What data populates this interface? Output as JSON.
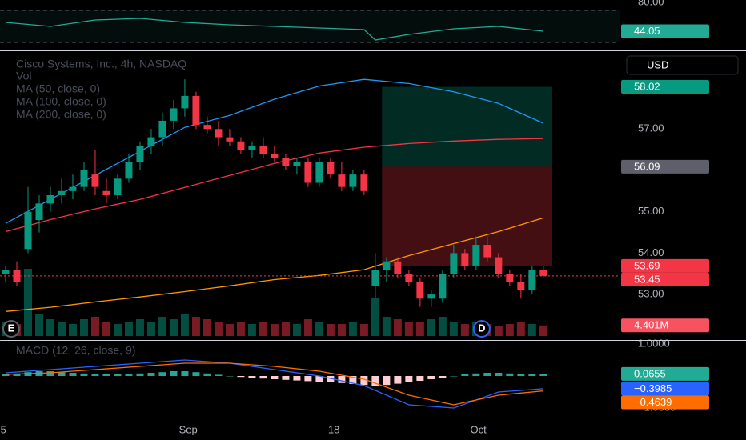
{
  "chart_data": {
    "type": "candlestick",
    "title": "Cisco Systems, Inc., 4h, NASDAQ",
    "volume_label": "Vol",
    "currency": "USD",
    "up_color": "#089981",
    "down_color": "#f23645",
    "xlim": [
      -0.5,
      54.8
    ],
    "xticks": [
      {
        "value": -0.2,
        "label": "5"
      },
      {
        "value": 16.3,
        "label": "Sep"
      },
      {
        "value": 29.3,
        "label": "18"
      },
      {
        "value": 42.2,
        "label": "Oct"
      }
    ],
    "ylim": [
      51.9,
      58.9
    ],
    "yticks": [
      {
        "value": 57,
        "label": "57.00"
      },
      {
        "value": 55,
        "label": "55.00"
      },
      {
        "value": 54,
        "label": "54.00"
      },
      {
        "value": 53,
        "label": "53.00"
      }
    ],
    "ohlc": [
      [
        53.5,
        53.7,
        53.3,
        53.6
      ],
      [
        53.6,
        53.8,
        53.2,
        53.3
      ],
      [
        54.1,
        55.6,
        54.0,
        55.0
      ],
      [
        54.8,
        55.4,
        54.5,
        55.2
      ],
      [
        55.2,
        55.6,
        55.0,
        55.4
      ],
      [
        55.4,
        55.8,
        55.2,
        55.5
      ],
      [
        55.5,
        55.9,
        55.3,
        55.6
      ],
      [
        55.6,
        56.2,
        55.5,
        56.0
      ],
      [
        55.9,
        56.5,
        55.4,
        55.6
      ],
      [
        55.5,
        55.8,
        55.2,
        55.4
      ],
      [
        55.4,
        55.9,
        55.3,
        55.8
      ],
      [
        55.8,
        56.4,
        55.7,
        56.2
      ],
      [
        56.2,
        56.7,
        56.0,
        56.6
      ],
      [
        56.6,
        57.0,
        56.4,
        56.8
      ],
      [
        56.8,
        57.4,
        56.6,
        57.2
      ],
      [
        57.2,
        57.7,
        57.0,
        57.5
      ],
      [
        57.5,
        58.2,
        57.3,
        57.8
      ],
      [
        57.8,
        57.9,
        57.0,
        57.1
      ],
      [
        57.1,
        57.3,
        56.9,
        57.0
      ],
      [
        57.0,
        57.2,
        56.6,
        56.8
      ],
      [
        56.8,
        57.0,
        56.6,
        56.7
      ],
      [
        56.7,
        56.8,
        56.4,
        56.5
      ],
      [
        56.5,
        56.7,
        56.3,
        56.6
      ],
      [
        56.6,
        56.8,
        56.3,
        56.4
      ],
      [
        56.4,
        56.6,
        56.2,
        56.3
      ],
      [
        56.3,
        56.4,
        56.0,
        56.1
      ],
      [
        56.1,
        56.3,
        55.9,
        56.2
      ],
      [
        56.2,
        56.3,
        55.6,
        55.7
      ],
      [
        55.7,
        56.3,
        55.6,
        56.2
      ],
      [
        56.2,
        56.3,
        55.8,
        55.9
      ],
      [
        55.9,
        56.2,
        55.5,
        55.6
      ],
      [
        55.6,
        56.0,
        55.5,
        55.9
      ],
      [
        55.9,
        56.0,
        55.4,
        55.5
      ],
      [
        53.2,
        54.0,
        52.9,
        53.6
      ],
      [
        53.6,
        53.9,
        53.3,
        53.8
      ],
      [
        53.8,
        53.9,
        53.4,
        53.5
      ],
      [
        53.5,
        53.6,
        53.2,
        53.3
      ],
      [
        53.3,
        53.4,
        52.7,
        52.9
      ],
      [
        52.9,
        53.1,
        52.7,
        53.0
      ],
      [
        52.9,
        53.6,
        52.8,
        53.5
      ],
      [
        53.5,
        54.2,
        53.4,
        54.0
      ],
      [
        54.0,
        54.1,
        53.6,
        53.7
      ],
      [
        53.7,
        54.4,
        53.6,
        54.2
      ],
      [
        54.2,
        54.4,
        53.8,
        53.9
      ],
      [
        53.9,
        54.0,
        53.4,
        53.5
      ],
      [
        53.5,
        53.6,
        53.2,
        53.3
      ],
      [
        53.3,
        53.5,
        52.9,
        53.1
      ],
      [
        53.1,
        53.7,
        53.0,
        53.6
      ],
      [
        53.6,
        53.7,
        53.4,
        53.45
      ]
    ],
    "volume": {
      "values": [
        6,
        5,
        28,
        9,
        7,
        6,
        5,
        7,
        8,
        6,
        5,
        6,
        7,
        6,
        8,
        7,
        9,
        8,
        7,
        6,
        5,
        6,
        5,
        6,
        5,
        6,
        5,
        7,
        6,
        5,
        5,
        6,
        5,
        16,
        8,
        7,
        6,
        6,
        7,
        8,
        6,
        5,
        6,
        5,
        4,
        5,
        6,
        5,
        4.401
      ],
      "ylim": [
        0,
        40
      ],
      "tag": {
        "value": 4.401,
        "label": "4.401M",
        "color": "#f7525f"
      }
    },
    "ma": [
      {
        "name": "MA (50, close, 0)",
        "color": "#2196f3",
        "x": [
          0,
          4,
          8,
          12,
          16,
          20,
          24,
          28,
          32,
          36,
          40,
          44,
          48
        ],
        "values": [
          54.72,
          55.3,
          55.88,
          56.46,
          57.04,
          57.33,
          57.72,
          58.04,
          58.2,
          58.1,
          57.9,
          57.62,
          57.14
        ]
      },
      {
        "name": "MA (100, close, 0)",
        "color": "#f23645",
        "x": [
          0,
          4,
          8,
          12,
          16,
          20,
          24,
          28,
          32,
          36,
          40,
          44,
          48
        ],
        "values": [
          54.52,
          54.81,
          55.07,
          55.3,
          55.59,
          55.88,
          56.17,
          56.42,
          56.56,
          56.65,
          56.71,
          56.75,
          56.77
        ]
      },
      {
        "name": "MA (200, close, 0)",
        "color": "#ff9800",
        "x": [
          0,
          4,
          8,
          12,
          16,
          20,
          24,
          28,
          32,
          36,
          40,
          44,
          48
        ],
        "values": [
          52.59,
          52.69,
          52.82,
          52.94,
          53.07,
          53.21,
          53.36,
          53.46,
          53.6,
          53.94,
          54.23,
          54.52,
          54.85
        ]
      }
    ],
    "position": {
      "x": [
        33.6,
        48.8
      ],
      "target": 58.02,
      "entry": 56.09,
      "stop": 53.69
    },
    "last_price": 53.45,
    "price_tags": [
      {
        "value": 58.02,
        "color": "#089981"
      },
      {
        "value": 56.09,
        "color": "#5d606b"
      },
      {
        "value": 53.69,
        "color": "#f23645"
      },
      {
        "value": 53.45,
        "color": "#f23645"
      }
    ],
    "events": [
      {
        "label": "E",
        "x": 0.5,
        "color": "#5d606b"
      },
      {
        "label": "D",
        "x": 42.5,
        "color": "#2962ff"
      }
    ],
    "rsi": {
      "ylim": [
        20,
        83
      ],
      "yticks": [
        {
          "value": 80,
          "label": "80.00"
        }
      ],
      "levels": [
        70,
        30
      ],
      "color": "#22ab94",
      "x": [
        0,
        4,
        8,
        12,
        16,
        20,
        24,
        28,
        32,
        33,
        36,
        40,
        44,
        48
      ],
      "values": [
        55,
        50,
        58,
        60,
        55,
        52,
        50,
        48,
        46,
        33,
        40,
        47,
        50,
        44.05
      ],
      "tag": {
        "value": 44.05,
        "color": "#22ab94"
      }
    },
    "macd": {
      "title": "MACD (12, 26, close, 9)",
      "ylim": [
        -1.675,
        1.125
      ],
      "yticks": [
        {
          "value": 1,
          "label": "1.0000"
        },
        {
          "value": -1,
          "label": "−1.0000"
        }
      ],
      "hist_colors": [
        "#26a69a",
        "#ffcdd2"
      ],
      "histogram": [
        0.05,
        0.08,
        0.12,
        0.15,
        0.15,
        0.12,
        0.1,
        0.08,
        0.06,
        0.05,
        0.05,
        0.06,
        0.08,
        0.1,
        0.12,
        0.15,
        0.15,
        0.12,
        0.08,
        0.04,
        0.0,
        -0.03,
        -0.06,
        -0.08,
        -0.1,
        -0.12,
        -0.14,
        -0.16,
        -0.18,
        -0.2,
        -0.22,
        -0.25,
        -0.28,
        -0.3,
        -0.28,
        -0.24,
        -0.2,
        -0.15,
        -0.1,
        -0.05,
        0.0,
        0.05,
        0.08,
        0.1,
        0.1,
        0.08,
        0.06,
        0.06,
        0.0655
      ],
      "x": [
        0,
        4,
        8,
        12,
        16,
        20,
        24,
        28,
        32,
        36,
        40,
        44,
        48
      ],
      "series": [
        {
          "color": "#2962ff",
          "values": [
            0.1,
            0.2,
            0.3,
            0.4,
            0.5,
            0.4,
            0.2,
            0.0,
            -0.3,
            -0.9,
            -1.0,
            -0.5,
            -0.3985
          ]
        },
        {
          "color": "#ff6d00",
          "values": [
            0.05,
            0.1,
            0.2,
            0.3,
            0.4,
            0.4,
            0.3,
            0.15,
            -0.1,
            -0.6,
            -0.9,
            -0.6,
            -0.4639
          ]
        }
      ],
      "tags": [
        {
          "value": 0.0655,
          "color": "#22ab94"
        },
        {
          "value": -0.3985,
          "label": "−0.3985",
          "color": "#2962ff"
        },
        {
          "value": -0.4639,
          "label": "−0.4639",
          "color": "#ff6d00"
        }
      ]
    }
  }
}
